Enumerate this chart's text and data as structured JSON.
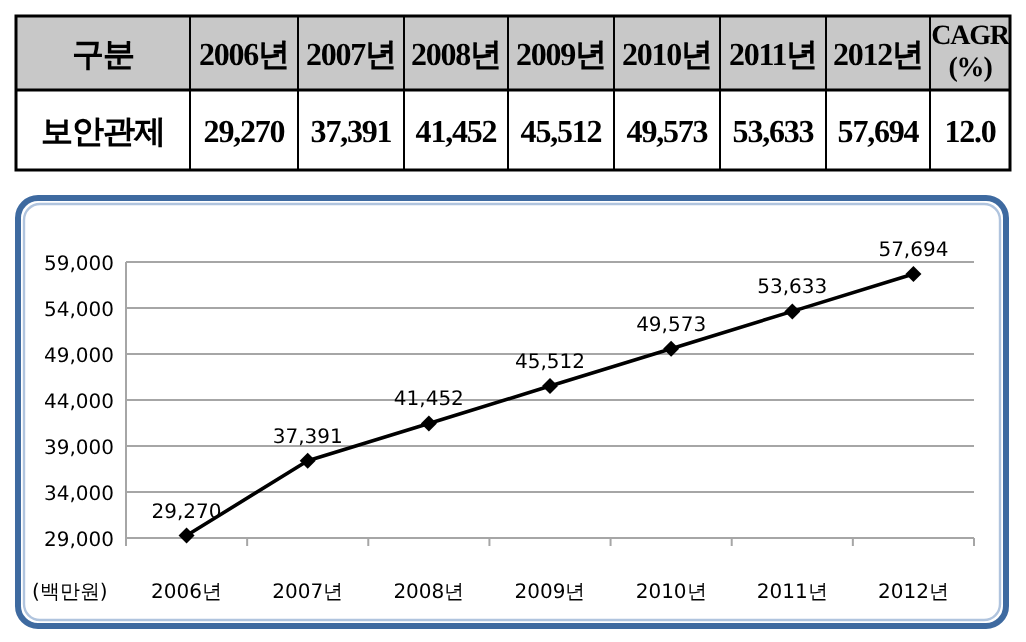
{
  "chart_data": {
    "type": "line",
    "categories": [
      "2006년",
      "2007년",
      "2008년",
      "2009년",
      "2010년",
      "2011년",
      "2012년"
    ],
    "series": [
      {
        "name": "보안관제",
        "color": "#000000",
        "values": [
          29270,
          37391,
          41452,
          45512,
          49573,
          53633,
          57694
        ],
        "value_labels": [
          "29,270",
          "37,391",
          "41,452",
          "45,512",
          "49,573",
          "53,633",
          "57,694"
        ]
      }
    ],
    "ylim": [
      29000,
      59000
    ],
    "yticks": [
      {
        "value": 29000,
        "label": "29,000"
      },
      {
        "value": 34000,
        "label": "34,000"
      },
      {
        "value": 39000,
        "label": "39,000"
      },
      {
        "value": 44000,
        "label": "44,000"
      },
      {
        "value": 49000,
        "label": "49,000"
      },
      {
        "value": 54000,
        "label": "54,000"
      },
      {
        "value": 59000,
        "label": "59,000"
      }
    ],
    "ylabel": "(백만원)",
    "grid": "y",
    "marker": "diamond",
    "line_style": "solid",
    "annotations": [
      "구분",
      "CAGR (%)",
      "12.0"
    ]
  }
}
